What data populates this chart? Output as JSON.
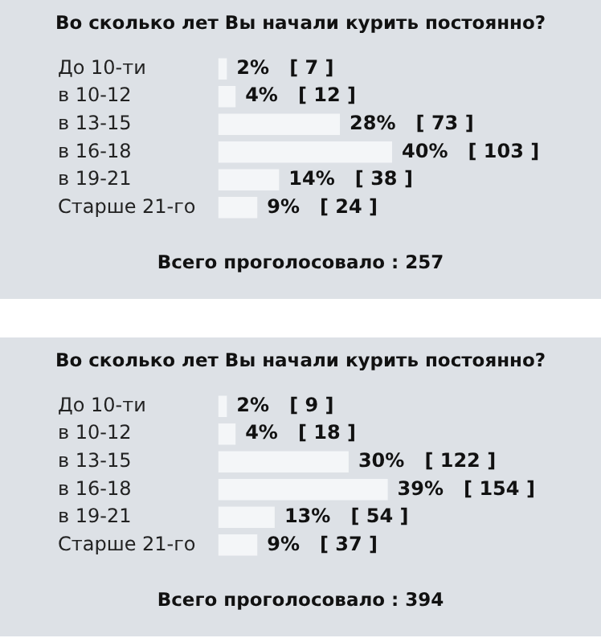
{
  "chart_data": [
    {
      "type": "bar",
      "orientation": "horizontal",
      "title": "Во сколько лет Вы начали курить постоянно?",
      "categories": [
        "До 10-ти",
        "в 10-12",
        "в 13-15",
        "в 16-18",
        "в 19-21",
        "Старше 21-го"
      ],
      "values": [
        2,
        4,
        28,
        40,
        14,
        9
      ],
      "color": "#f4f6f8",
      "value_labels": [
        "2%   [ 7 ]",
        "4%   [ 12 ]",
        "28%   [ 73 ]",
        "40%   [ 103 ]",
        "14%   [ 38 ]",
        "9%   [ 24 ]"
      ],
      "tick_labels": "y",
      "annotations": [
        "Всего проголосовало : 257"
      ]
    },
    {
      "type": "bar",
      "orientation": "horizontal",
      "title": "Во сколько лет Вы начали курить постоянно?",
      "categories": [
        "До 10-ти",
        "в 10-12",
        "в 13-15",
        "в 16-18",
        "в 19-21",
        "Старше 21-го"
      ],
      "values": [
        2,
        4,
        30,
        39,
        13,
        9
      ],
      "color": "#f4f6f8",
      "value_labels": [
        "2%   [ 9 ]",
        "4%   [ 18 ]",
        "30%   [ 122 ]",
        "39%   [ 154 ]",
        "13%   [ 54 ]",
        "9%   [ 37 ]"
      ],
      "tick_labels": "y",
      "annotations": [
        "Всего проголосовало : 394"
      ]
    }
  ]
}
